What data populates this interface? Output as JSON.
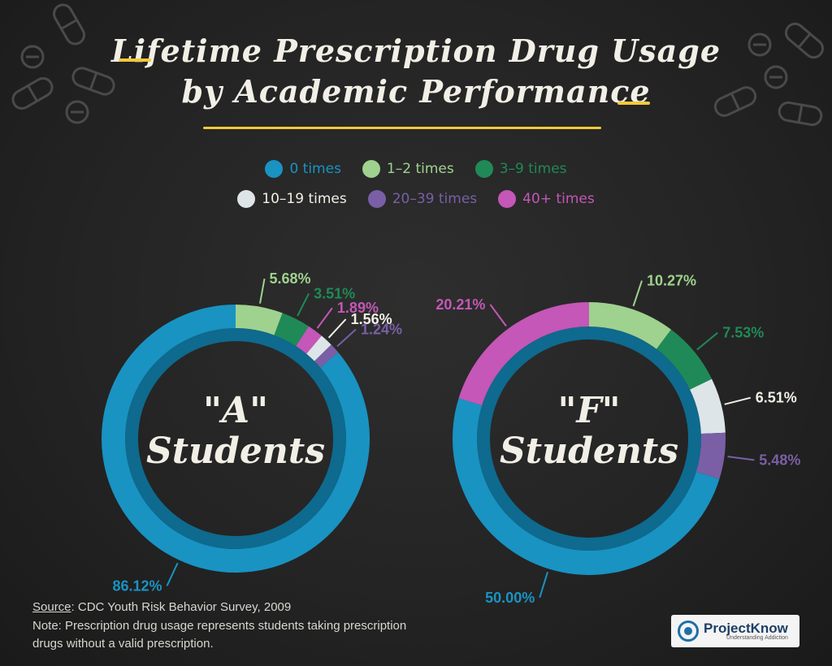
{
  "header": {
    "title_line1": "Lifetime Prescription Drug Usage",
    "title_line2": "by Academic Performance"
  },
  "colors": {
    "accent_yellow": "#f3c93b",
    "chalk_white": "#f2efe6",
    "board": "#242424"
  },
  "chart_data": [
    {
      "type": "pie",
      "variant": "donut",
      "center_label_line1": "\"A\"",
      "center_label_line2": "Students",
      "categories": [
        "0 times",
        "1–2 times",
        "3–9 times",
        "10–19 times",
        "20–39 times",
        "40+ times"
      ],
      "slices": [
        {
          "category": "1–2 times",
          "value": 5.68,
          "label": "5.68%",
          "color": "#9fd28e"
        },
        {
          "category": "3–9 times",
          "value": 3.51,
          "label": "3.51%",
          "color": "#1f8a57"
        },
        {
          "category": "40+ times",
          "value": 1.89,
          "label": "1.89%",
          "color": "#c457b7"
        },
        {
          "category": "10–19 times",
          "value": 1.56,
          "label": "1.56%",
          "color": "#dde5e8"
        },
        {
          "category": "20–39 times",
          "value": 1.24,
          "label": "1.24%",
          "color": "#7a5fa6"
        },
        {
          "category": "0 times",
          "value": 86.12,
          "label": "86.12%",
          "color": "#1993c2"
        }
      ],
      "legend_position": "top"
    },
    {
      "type": "pie",
      "variant": "donut",
      "center_label_line1": "\"F\"",
      "center_label_line2": "Students",
      "categories": [
        "0 times",
        "1–2 times",
        "3–9 times",
        "10–19 times",
        "20–39 times",
        "40+ times"
      ],
      "slices": [
        {
          "category": "1–2 times",
          "value": 10.27,
          "label": "10.27%",
          "color": "#9fd28e"
        },
        {
          "category": "3–9 times",
          "value": 7.53,
          "label": "7.53%",
          "color": "#1f8a57"
        },
        {
          "category": "10–19 times",
          "value": 6.51,
          "label": "6.51%",
          "color": "#dde5e8"
        },
        {
          "category": "20–39 times",
          "value": 5.48,
          "label": "5.48%",
          "color": "#7a5fa6"
        },
        {
          "category": "0 times",
          "value": 50.0,
          "label": "50.00%",
          "color": "#1993c2"
        },
        {
          "category": "40+ times",
          "value": 20.21,
          "label": "20.21%",
          "color": "#c457b7"
        }
      ],
      "legend_position": "top"
    }
  ],
  "legend": [
    {
      "label": "0 times",
      "color": "#1993c2"
    },
    {
      "label": "1–2 times",
      "color": "#9fd28e"
    },
    {
      "label": "3–9 times",
      "color": "#1f8a57"
    },
    {
      "label": "10–19 times",
      "color": "#dde5e8"
    },
    {
      "label": "20–39 times",
      "color": "#7a5fa6"
    },
    {
      "label": "40+ times",
      "color": "#c457b7"
    }
  ],
  "footer": {
    "source_label": "Source",
    "source_text": ": CDC Youth Risk Behavior Survey, 2009",
    "note_line1": "Note: Prescription drug usage represents students taking prescription",
    "note_line2": "drugs without a valid prescription."
  },
  "logo": {
    "name": "ProjectKnow",
    "tagline": "Understanding Addiction"
  },
  "decorations": [
    "pill-icon",
    "tablet-icon"
  ]
}
